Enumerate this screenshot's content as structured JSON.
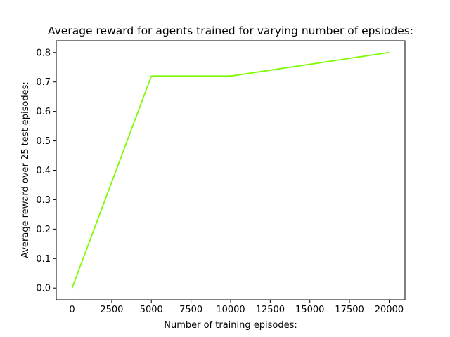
{
  "chart_data": {
    "type": "line",
    "title": "Average reward for agents trained for varying number of epsiodes:",
    "xlabel": "Number of training episodes:",
    "ylabel": "Average reward over 25 test episodes:",
    "xlim": [
      -1000,
      21000
    ],
    "ylim": [
      -0.04,
      0.84
    ],
    "xticks": [
      0,
      2500,
      5000,
      7500,
      10000,
      12500,
      15000,
      17500,
      20000
    ],
    "xtick_labels": [
      "0",
      "2500",
      "5000",
      "7500",
      "10000",
      "12500",
      "15000",
      "17500",
      "20000"
    ],
    "yticks": [
      0.0,
      0.1,
      0.2,
      0.3,
      0.4,
      0.5,
      0.6,
      0.7,
      0.8
    ],
    "ytick_labels": [
      "0.0",
      "0.1",
      "0.2",
      "0.3",
      "0.4",
      "0.5",
      "0.6",
      "0.7",
      "0.8"
    ],
    "grid": false,
    "series": [
      {
        "color": "#7cfc00",
        "x": [
          0,
          5000,
          10000,
          20000
        ],
        "y": [
          0.0,
          0.72,
          0.72,
          0.8
        ]
      }
    ]
  }
}
